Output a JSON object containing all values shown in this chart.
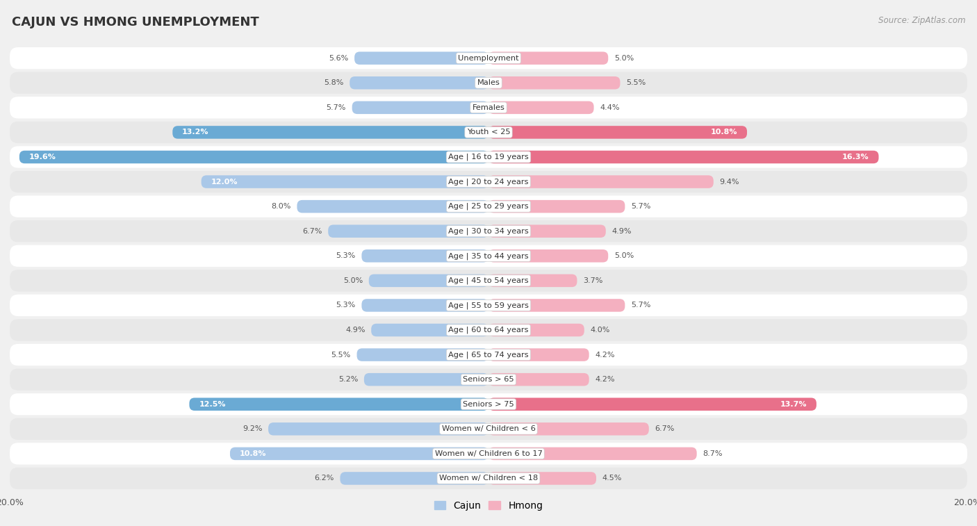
{
  "title": "CAJUN VS HMONG UNEMPLOYMENT",
  "source": "Source: ZipAtlas.com",
  "categories": [
    "Unemployment",
    "Males",
    "Females",
    "Youth < 25",
    "Age | 16 to 19 years",
    "Age | 20 to 24 years",
    "Age | 25 to 29 years",
    "Age | 30 to 34 years",
    "Age | 35 to 44 years",
    "Age | 45 to 54 years",
    "Age | 55 to 59 years",
    "Age | 60 to 64 years",
    "Age | 65 to 74 years",
    "Seniors > 65",
    "Seniors > 75",
    "Women w/ Children < 6",
    "Women w/ Children 6 to 17",
    "Women w/ Children < 18"
  ],
  "cajun": [
    5.6,
    5.8,
    5.7,
    13.2,
    19.6,
    12.0,
    8.0,
    6.7,
    5.3,
    5.0,
    5.3,
    4.9,
    5.5,
    5.2,
    12.5,
    9.2,
    10.8,
    6.2
  ],
  "hmong": [
    5.0,
    5.5,
    4.4,
    10.8,
    16.3,
    9.4,
    5.7,
    4.9,
    5.0,
    3.7,
    5.7,
    4.0,
    4.2,
    4.2,
    13.7,
    6.7,
    8.7,
    4.5
  ],
  "cajun_color_normal": "#aac8e8",
  "cajun_color_highlight": "#6aaad4",
  "hmong_color_normal": "#f4b0c0",
  "hmong_color_highlight": "#e8708a",
  "axis_max": 20.0,
  "bg_color": "#f0f0f0",
  "row_bg_white": "#ffffff",
  "row_bg_gray": "#e8e8e8",
  "highlight_rows": [
    3,
    4,
    14
  ],
  "legend_cajun": "Cajun",
  "legend_hmong": "Hmong",
  "label_inside_threshold": 10.0
}
